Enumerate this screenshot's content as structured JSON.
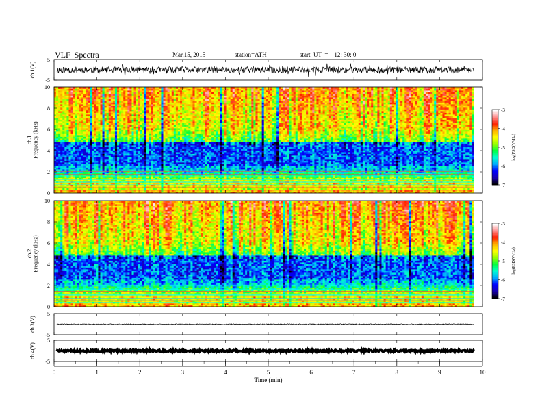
{
  "header": {
    "title": "VLF  Spectra",
    "date": "Mar.15, 2015",
    "station": "station=ATH",
    "start_ut": "start  UT  =    12: 30: 0"
  },
  "chart_data": [
    {
      "type": "line",
      "panel": "ch1-waveform",
      "ylabel": "ch.1(V)",
      "ylim": [
        -5,
        5
      ],
      "yticks": [
        "5",
        "-5"
      ],
      "trace_level": 0,
      "trace_amplitude": 1.5
    },
    {
      "type": "heatmap",
      "panel": "ch1-spectrogram",
      "ylabel": [
        "ch.1",
        "Frequency  (kHz)"
      ],
      "ylim": [
        0,
        10
      ],
      "yticks": [
        "0",
        "2",
        "4",
        "6",
        "8",
        "10"
      ],
      "colorbar": {
        "label": "log(PSD(V²/Hz)",
        "range": [
          -7,
          -3
        ],
        "ticks": [
          "-3",
          "-4",
          "-5",
          "-6",
          "-7"
        ]
      }
    },
    {
      "type": "heatmap",
      "panel": "ch2-spectrogram",
      "ylabel": [
        "ch.2",
        "Frequency  (kHz)"
      ],
      "ylim": [
        0,
        10
      ],
      "yticks": [
        "0",
        "2",
        "4",
        "6",
        "8",
        "10"
      ],
      "colorbar": {
        "label": "log(PSD(V²/Hz)",
        "range": [
          -7,
          -3
        ],
        "ticks": [
          "-3",
          "-4",
          "-5",
          "-6",
          "-7"
        ]
      }
    },
    {
      "type": "line",
      "panel": "ch3-waveform",
      "ylabel": "ch.3(V)",
      "ylim": [
        -5,
        5
      ],
      "yticks": [
        "5",
        "-5"
      ],
      "trace_level": 0,
      "trace_amplitude": 0.2
    },
    {
      "type": "line",
      "panel": "ch4-waveform",
      "ylabel": "ch.4(V)",
      "ylim": [
        -5,
        5
      ],
      "yticks": [
        "5",
        "-5"
      ],
      "trace_level": 0,
      "trace_amplitude": 0.4
    }
  ],
  "xaxis": {
    "label": "Time  (min)",
    "range": [
      0,
      10
    ],
    "ticks": [
      "0",
      "1",
      "2",
      "3",
      "4",
      "5",
      "6",
      "7",
      "8",
      "9",
      "10"
    ],
    "data_end": 9.8
  },
  "colors": {
    "colormap": [
      "#000000",
      "#1a00b0",
      "#0000ff",
      "#00a8ff",
      "#00ffd0",
      "#00ff40",
      "#9aff00",
      "#ffff00",
      "#ffb000",
      "#ff2000",
      "#ff9090",
      "#ffffff"
    ]
  }
}
